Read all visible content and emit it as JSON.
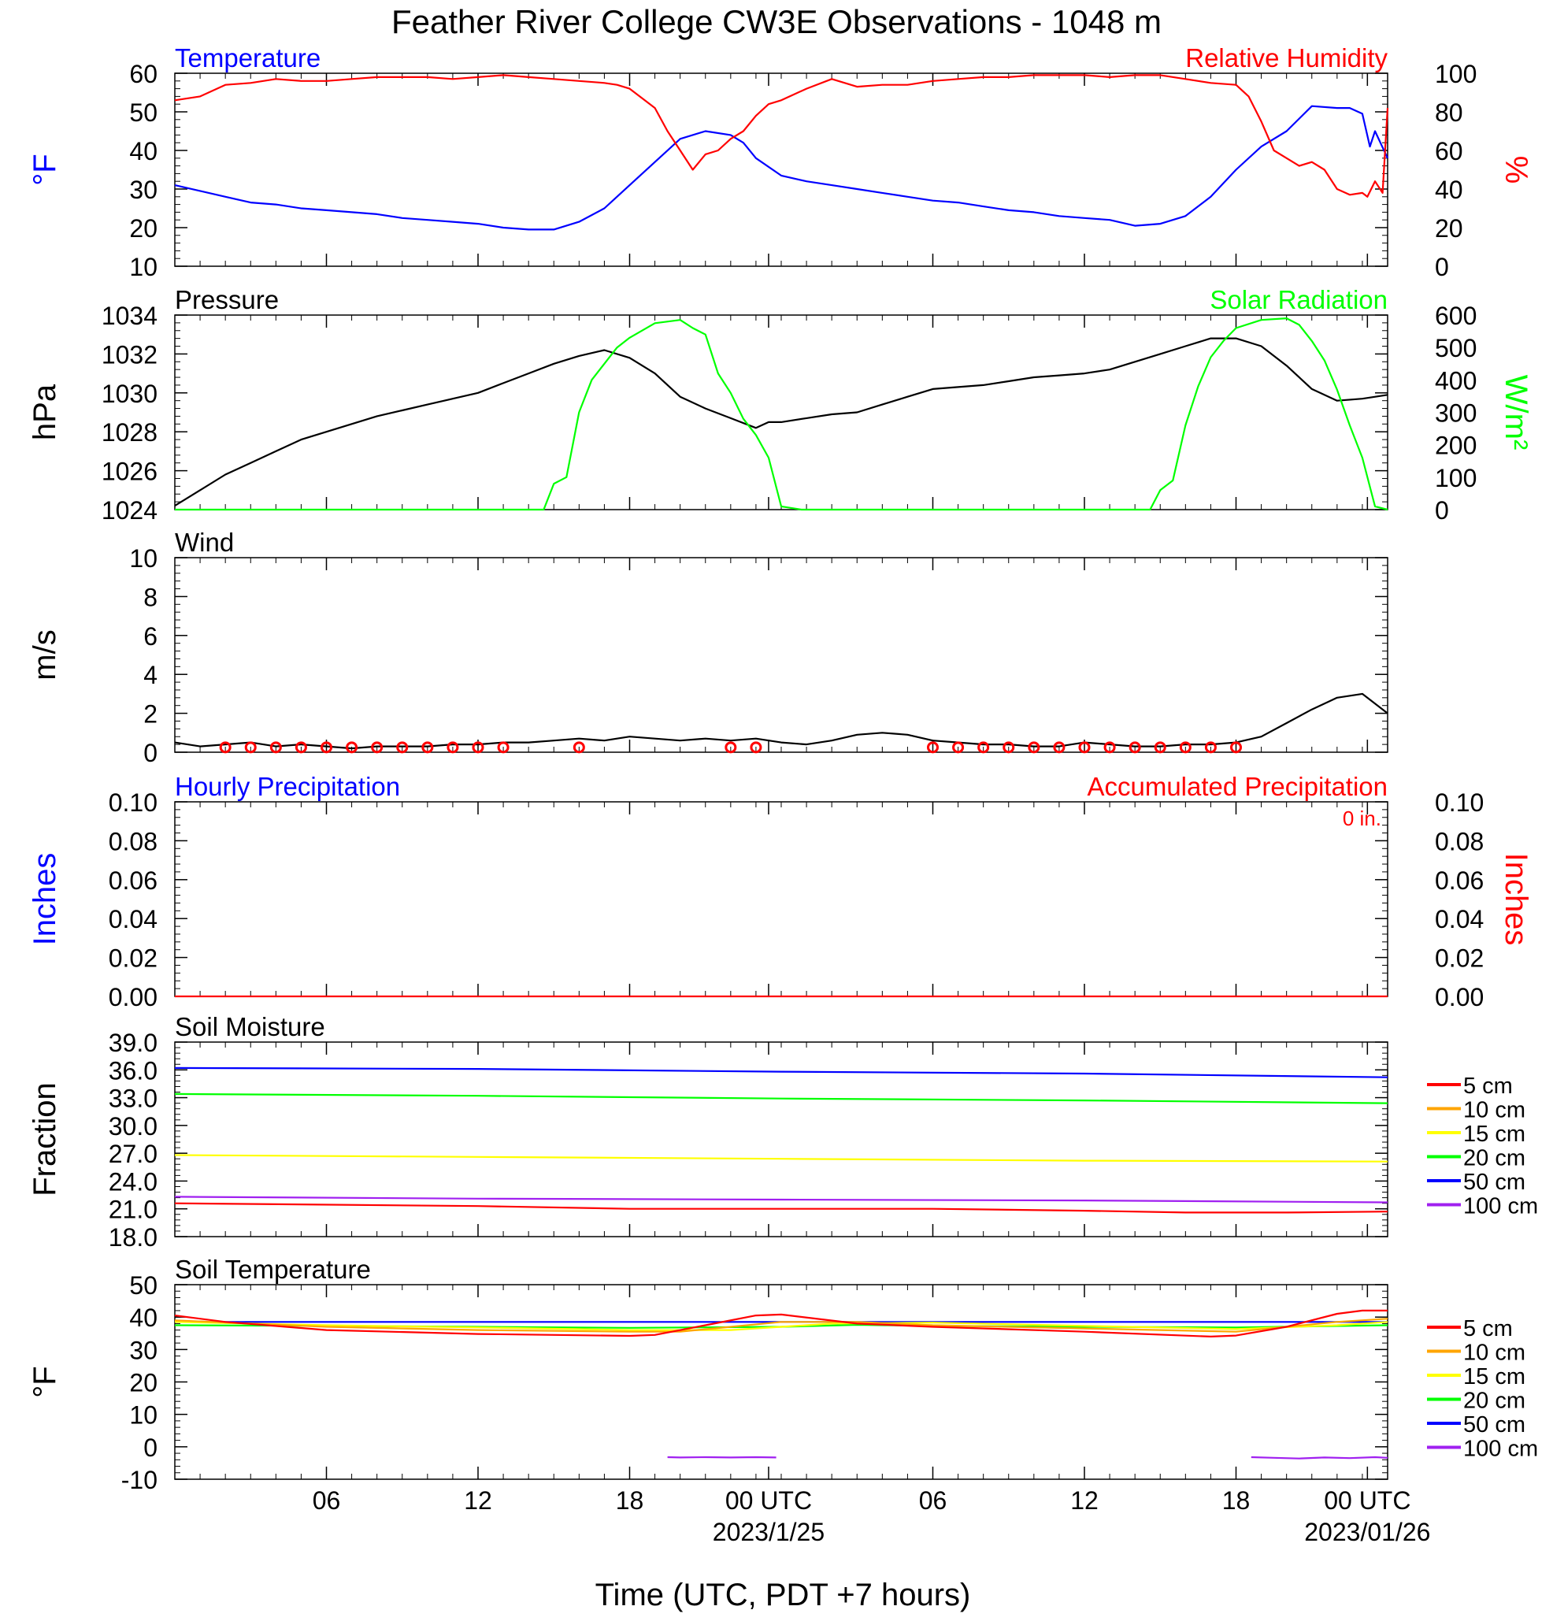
{
  "title": "Feather River College CW3E Observations - 1048 m",
  "xlabel": "Time (UTC, PDT +7 hours)",
  "colors": {
    "blue": "#0000ff",
    "red": "#ff0000",
    "green": "#00ff00",
    "black": "#000000",
    "orange": "#ffa500",
    "yellow": "#ffff00",
    "purple": "#a020f0"
  },
  "x_axis": {
    "range_hours": [
      0,
      48
    ],
    "ticks": [
      {
        "hour": 6,
        "label": "06",
        "date": ""
      },
      {
        "hour": 12,
        "label": "12",
        "date": ""
      },
      {
        "hour": 18,
        "label": "18",
        "date": ""
      },
      {
        "hour": 23.5,
        "label": "00 UTC",
        "date": "2023/1/25"
      },
      {
        "hour": 30,
        "label": "06",
        "date": ""
      },
      {
        "hour": 36,
        "label": "12",
        "date": ""
      },
      {
        "hour": 42,
        "label": "18",
        "date": ""
      },
      {
        "hour": 47.2,
        "label": "00 UTC",
        "date": "2023/01/26"
      }
    ]
  },
  "chart_data": [
    {
      "id": "temp_rh",
      "type": "line",
      "left_title": "Temperature",
      "right_title": "Relative Humidity",
      "ylabel_left": "°F",
      "ylabel_right": "%",
      "ylim_left": [
        10,
        60
      ],
      "ylim_right": [
        0,
        100
      ],
      "yticks_left": [
        "10",
        "20",
        "30",
        "40",
        "50",
        "60"
      ],
      "yticks_right": [
        "0",
        "20",
        "40",
        "60",
        "80",
        "100"
      ],
      "series": [
        {
          "name": "Temperature",
          "color": "blue",
          "axis": "left",
          "x": [
            0,
            1,
            2,
            3,
            4,
            5,
            6,
            7,
            8,
            9,
            10,
            11,
            12,
            13,
            14,
            15,
            16,
            17,
            18,
            19,
            20,
            21,
            22,
            22.5,
            23,
            24,
            25,
            26,
            27,
            28,
            29,
            30,
            31,
            32,
            33,
            34,
            35,
            36,
            37,
            38,
            39,
            40,
            41,
            42,
            43,
            44,
            45,
            46,
            46.5,
            47,
            47.3,
            47.5,
            48
          ],
          "y": [
            31,
            29.5,
            28,
            26.5,
            26,
            25,
            24.5,
            24,
            23.5,
            22.5,
            22,
            21.5,
            21,
            20,
            19.5,
            19.5,
            21.5,
            25,
            31,
            37,
            43,
            45,
            44,
            42,
            38,
            33.5,
            32,
            31,
            30,
            29,
            28,
            27,
            26.5,
            25.5,
            24.5,
            24,
            23,
            22.5,
            22,
            20.5,
            21,
            23,
            28,
            35,
            41,
            45,
            51.5,
            51,
            51,
            49.5,
            41,
            45,
            38
          ]
        },
        {
          "name": "Relative Humidity",
          "color": "red",
          "axis": "right",
          "x": [
            0,
            1,
            2,
            3,
            4,
            5,
            6,
            7,
            8,
            9,
            10,
            11,
            12,
            13,
            14,
            15,
            16,
            17,
            17.5,
            18,
            19,
            19.5,
            20,
            20.5,
            21,
            21.5,
            22,
            22.5,
            23,
            23.5,
            24,
            25,
            26,
            27,
            28,
            29,
            30,
            31,
            32,
            33,
            34,
            35,
            36,
            37,
            38,
            39,
            40,
            41,
            42,
            42.5,
            43,
            43.5,
            44,
            44.5,
            45,
            45.5,
            46,
            46.5,
            47,
            47.2,
            47.5,
            47.8,
            48
          ],
          "y": [
            86,
            88,
            94,
            95,
            97,
            96,
            96,
            97,
            98,
            98,
            98,
            97,
            98,
            99,
            98,
            97,
            96,
            95,
            94,
            92,
            82,
            70,
            60,
            50,
            58,
            60,
            66,
            70,
            78,
            84,
            86,
            92,
            97,
            93,
            94,
            94,
            96,
            97,
            98,
            98,
            99,
            99,
            99,
            98,
            99,
            99,
            97,
            95,
            94,
            88,
            75,
            60,
            56,
            52,
            54,
            50,
            40,
            37,
            38,
            36,
            44,
            38,
            82
          ]
        }
      ]
    },
    {
      "id": "pressure_solar",
      "type": "line",
      "left_title": "Pressure",
      "right_title": "Solar Radiation",
      "ylabel_left": "hPa",
      "ylabel_right": "W/m²",
      "ylim_left": [
        1024,
        1034
      ],
      "ylim_right": [
        0,
        600
      ],
      "yticks_left": [
        "1024",
        "1026",
        "1028",
        "1030",
        "1032",
        "1034"
      ],
      "yticks_right": [
        "0",
        "100",
        "200",
        "300",
        "400",
        "500",
        "600"
      ],
      "series": [
        {
          "name": "Pressure",
          "color": "black",
          "axis": "left",
          "x": [
            0,
            1,
            2,
            3,
            4,
            5,
            6,
            7,
            8,
            9,
            10,
            11,
            12,
            13,
            14,
            15,
            16,
            17,
            18,
            19,
            20,
            21,
            22,
            23,
            23.5,
            24,
            25,
            26,
            27,
            28,
            29,
            30,
            31,
            32,
            33,
            34,
            35,
            36,
            37,
            38,
            39,
            40,
            41,
            42,
            43,
            44,
            45,
            46,
            47,
            48
          ],
          "y": [
            1024.2,
            1025,
            1025.8,
            1026.4,
            1027,
            1027.6,
            1028,
            1028.4,
            1028.8,
            1029.1,
            1029.4,
            1029.7,
            1030,
            1030.5,
            1031,
            1031.5,
            1031.9,
            1032.2,
            1031.8,
            1031,
            1029.8,
            1029.2,
            1028.7,
            1028.2,
            1028.5,
            1028.5,
            1028.7,
            1028.9,
            1029,
            1029.4,
            1029.8,
            1030.2,
            1030.3,
            1030.4,
            1030.6,
            1030.8,
            1030.9,
            1031,
            1031.2,
            1031.6,
            1032,
            1032.4,
            1032.8,
            1032.8,
            1032.4,
            1031.4,
            1030.2,
            1029.6,
            1029.7,
            1029.9
          ]
        },
        {
          "name": "Solar Radiation",
          "color": "green",
          "axis": "right",
          "x": [
            0,
            14.6,
            15,
            15.5,
            16,
            16.5,
            17,
            17.5,
            18,
            19,
            20,
            20.5,
            21,
            21.5,
            22,
            22.5,
            23,
            23.5,
            24,
            24.8,
            38.6,
            39,
            39.5,
            40,
            40.5,
            41,
            41.5,
            42,
            43,
            44,
            44.5,
            45,
            45.5,
            46,
            46.5,
            47,
            47.5,
            48
          ],
          "y": [
            0,
            0,
            80,
            100,
            300,
            400,
            450,
            500,
            530,
            575,
            585,
            560,
            540,
            420,
            360,
            280,
            230,
            160,
            10,
            0,
            0,
            60,
            90,
            260,
            380,
            470,
            520,
            560,
            585,
            590,
            570,
            520,
            460,
            370,
            260,
            160,
            10,
            0
          ]
        }
      ]
    },
    {
      "id": "wind",
      "type": "line",
      "left_title": "Wind",
      "ylabel_left": "m/s",
      "ylim_left": [
        0,
        10
      ],
      "yticks_left": [
        "0",
        "2",
        "4",
        "6",
        "8",
        "10"
      ],
      "series": [
        {
          "name": "Wind",
          "color": "black",
          "axis": "left",
          "x": [
            0,
            1,
            2,
            3,
            4,
            5,
            6,
            7,
            8,
            9,
            10,
            11,
            12,
            13,
            14,
            15,
            16,
            17,
            18,
            19,
            20,
            21,
            22,
            23,
            24,
            25,
            26,
            27,
            28,
            29,
            30,
            31,
            32,
            33,
            34,
            35,
            36,
            37,
            38,
            39,
            40,
            41,
            42,
            43,
            44,
            45,
            46,
            47,
            48
          ],
          "y": [
            0.5,
            0.3,
            0.4,
            0.5,
            0.3,
            0.4,
            0.3,
            0.2,
            0.3,
            0.3,
            0.3,
            0.4,
            0.4,
            0.5,
            0.5,
            0.6,
            0.7,
            0.6,
            0.8,
            0.7,
            0.6,
            0.7,
            0.6,
            0.7,
            0.5,
            0.4,
            0.6,
            0.9,
            1.0,
            0.9,
            0.6,
            0.5,
            0.4,
            0.4,
            0.3,
            0.3,
            0.5,
            0.4,
            0.3,
            0.3,
            0.4,
            0.4,
            0.5,
            0.8,
            1.5,
            2.2,
            2.8,
            3.0,
            2.0
          ]
        }
      ]
    },
    {
      "id": "precip",
      "type": "line",
      "left_title": "Hourly Precipitation",
      "right_title": "Accumulated Precipitation",
      "annotation": "0 in.",
      "ylabel_left": "Inches",
      "ylabel_right": "Inches",
      "ylim_left": [
        0,
        0.1
      ],
      "ylim_right": [
        0,
        0.1
      ],
      "yticks_left": [
        "0.00",
        "0.02",
        "0.04",
        "0.06",
        "0.08",
        "0.10"
      ],
      "yticks_right": [
        "0.00",
        "0.02",
        "0.04",
        "0.06",
        "0.08",
        "0.10"
      ],
      "series": [
        {
          "name": "Accumulated Precipitation",
          "color": "red",
          "axis": "right",
          "x": [
            0,
            48
          ],
          "y": [
            0,
            0
          ]
        }
      ]
    },
    {
      "id": "soil_moisture",
      "type": "line",
      "left_title": "Soil Moisture",
      "ylabel_left": "Fraction",
      "ylim_left": [
        18,
        39
      ],
      "yticks_left": [
        "18.0",
        "21.0",
        "24.0",
        "27.0",
        "30.0",
        "33.0",
        "36.0",
        "39.0"
      ],
      "legend": [
        {
          "label": "5 cm",
          "color": "red"
        },
        {
          "label": "10 cm",
          "color": "orange"
        },
        {
          "label": "15 cm",
          "color": "yellow"
        },
        {
          "label": "20 cm",
          "color": "green"
        },
        {
          "label": "50 cm",
          "color": "blue"
        },
        {
          "label": "100 cm",
          "color": "purple"
        }
      ],
      "series": [
        {
          "name": "50 cm",
          "color": "blue",
          "axis": "left",
          "x": [
            0,
            12,
            24,
            36,
            48
          ],
          "y": [
            36.2,
            36.1,
            35.8,
            35.6,
            35.2
          ]
        },
        {
          "name": "20 cm",
          "color": "green",
          "axis": "left",
          "x": [
            0,
            12,
            24,
            36,
            48
          ],
          "y": [
            33.4,
            33.2,
            32.9,
            32.7,
            32.4
          ]
        },
        {
          "name": "15 cm",
          "color": "yellow",
          "axis": "left",
          "x": [
            0,
            12,
            24,
            36,
            48
          ],
          "y": [
            26.8,
            26.6,
            26.4,
            26.2,
            26.1
          ]
        },
        {
          "name": "100 cm",
          "color": "purple",
          "axis": "left",
          "x": [
            0,
            12,
            24,
            36,
            48
          ],
          "y": [
            22.3,
            22.1,
            22.0,
            21.9,
            21.7
          ]
        },
        {
          "name": "5 cm",
          "color": "red",
          "axis": "left",
          "x": [
            0,
            12,
            18,
            24,
            30,
            36,
            40,
            44,
            48
          ],
          "y": [
            21.6,
            21.3,
            21.0,
            21.0,
            21.0,
            20.8,
            20.6,
            20.6,
            20.7
          ]
        }
      ]
    },
    {
      "id": "soil_temperature",
      "type": "line",
      "left_title": "Soil Temperature",
      "ylabel_left": "°F",
      "ylim_left": [
        -10,
        50
      ],
      "yticks_left": [
        "-10",
        "0",
        "10",
        "20",
        "30",
        "40",
        "50"
      ],
      "legend": [
        {
          "label": "5 cm",
          "color": "red"
        },
        {
          "label": "10 cm",
          "color": "orange"
        },
        {
          "label": "15 cm",
          "color": "yellow"
        },
        {
          "label": "20 cm",
          "color": "green"
        },
        {
          "label": "50 cm",
          "color": "blue"
        },
        {
          "label": "100 cm",
          "color": "purple"
        }
      ],
      "series": [
        {
          "name": "50 cm",
          "color": "blue",
          "axis": "left",
          "x": [
            0,
            48
          ],
          "y": [
            38.5,
            38.5
          ]
        },
        {
          "name": "20 cm",
          "color": "green",
          "axis": "left",
          "x": [
            0,
            6,
            12,
            18,
            24,
            27,
            30,
            36,
            42,
            48
          ],
          "y": [
            37.5,
            37.3,
            37,
            36.7,
            37,
            37.6,
            37.3,
            37,
            36.8,
            37.5
          ]
        },
        {
          "name": "15 cm",
          "color": "yellow",
          "axis": "left",
          "x": [
            0,
            6,
            12,
            18,
            22,
            26,
            30,
            36,
            42,
            46,
            48
          ],
          "y": [
            38.5,
            37.5,
            36.8,
            36,
            36,
            38,
            38.3,
            37.3,
            36.3,
            37.5,
            38.5
          ]
        },
        {
          "name": "10 cm",
          "color": "orange",
          "axis": "left",
          "x": [
            0,
            6,
            12,
            18,
            20,
            24,
            27,
            30,
            36,
            42,
            46,
            48
          ],
          "y": [
            39,
            37,
            36,
            35.5,
            35.5,
            38.5,
            38.5,
            37.5,
            36.5,
            35.5,
            38.5,
            39.5
          ]
        },
        {
          "name": "5 cm",
          "color": "red",
          "axis": "left",
          "x": [
            0,
            2,
            6,
            12,
            18,
            19,
            21,
            23,
            24,
            27,
            30,
            36,
            41,
            42,
            44,
            46,
            47,
            48
          ],
          "y": [
            40.5,
            38.5,
            36,
            34.8,
            34.2,
            34.5,
            37.5,
            40.5,
            40.8,
            38,
            37,
            35.5,
            34,
            34.3,
            37,
            41,
            42,
            42
          ]
        },
        {
          "name": "100 cm",
          "color": "purple",
          "axis": "left",
          "x": [
            19.5,
            20,
            21,
            22,
            23,
            23.8
          ],
          "y": [
            -3.2,
            -3.3,
            -3.2,
            -3.3,
            -3.2,
            -3.3
          ]
        },
        {
          "name": "100 cm",
          "color": "purple",
          "axis": "left",
          "x": [
            42.6,
            43.5,
            44.5,
            45.5,
            46.5,
            47.5,
            48
          ],
          "y": [
            -3.2,
            -3.4,
            -3.6,
            -3.3,
            -3.5,
            -3.2,
            -3.4
          ]
        }
      ]
    }
  ]
}
